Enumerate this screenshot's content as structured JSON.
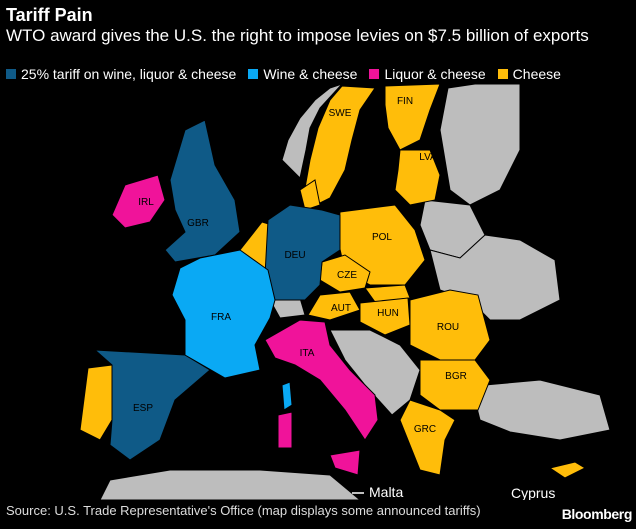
{
  "header": {
    "title": "Tariff Pain",
    "subtitle": "WTO award gives the U.S. the right to impose levies on $7.5 billion of exports"
  },
  "legend": [
    {
      "label": "25% tariff on wine, liquor & cheese",
      "color": "#0f5a87"
    },
    {
      "label": "Wine & cheese",
      "color": "#0aa9f4"
    },
    {
      "label": "Liquor & cheese",
      "color": "#f0139a"
    },
    {
      "label": "Cheese",
      "color": "#ffbd0a"
    }
  ],
  "map": {
    "countries": [
      {
        "code": "IRL",
        "category": "Liquor & cheese"
      },
      {
        "code": "GBR",
        "category": "25% tariff on wine, liquor & cheese"
      },
      {
        "code": "DEU",
        "category": "25% tariff on wine, liquor & cheese"
      },
      {
        "code": "ESP",
        "category": "25% tariff on wine, liquor & cheese"
      },
      {
        "code": "FRA",
        "category": "Wine & cheese"
      },
      {
        "code": "ITA",
        "category": "Liquor & cheese"
      },
      {
        "code": "SWE",
        "category": "Cheese"
      },
      {
        "code": "FIN",
        "category": "Cheese"
      },
      {
        "code": "LVA",
        "category": "Cheese"
      },
      {
        "code": "POL",
        "category": "Cheese"
      },
      {
        "code": "CZE",
        "category": "Cheese"
      },
      {
        "code": "AUT",
        "category": "Cheese"
      },
      {
        "code": "HUN",
        "category": "Cheese"
      },
      {
        "code": "ROU",
        "category": "Cheese"
      },
      {
        "code": "BGR",
        "category": "Cheese"
      },
      {
        "code": "GRC",
        "category": "Cheese"
      }
    ],
    "callouts": {
      "malta": "Malta",
      "cyprus": "Cyprus"
    }
  },
  "footer": {
    "source": "Source: U.S. Trade Representative's Office (map displays some announced tariffs)",
    "brand": "Bloomberg"
  }
}
